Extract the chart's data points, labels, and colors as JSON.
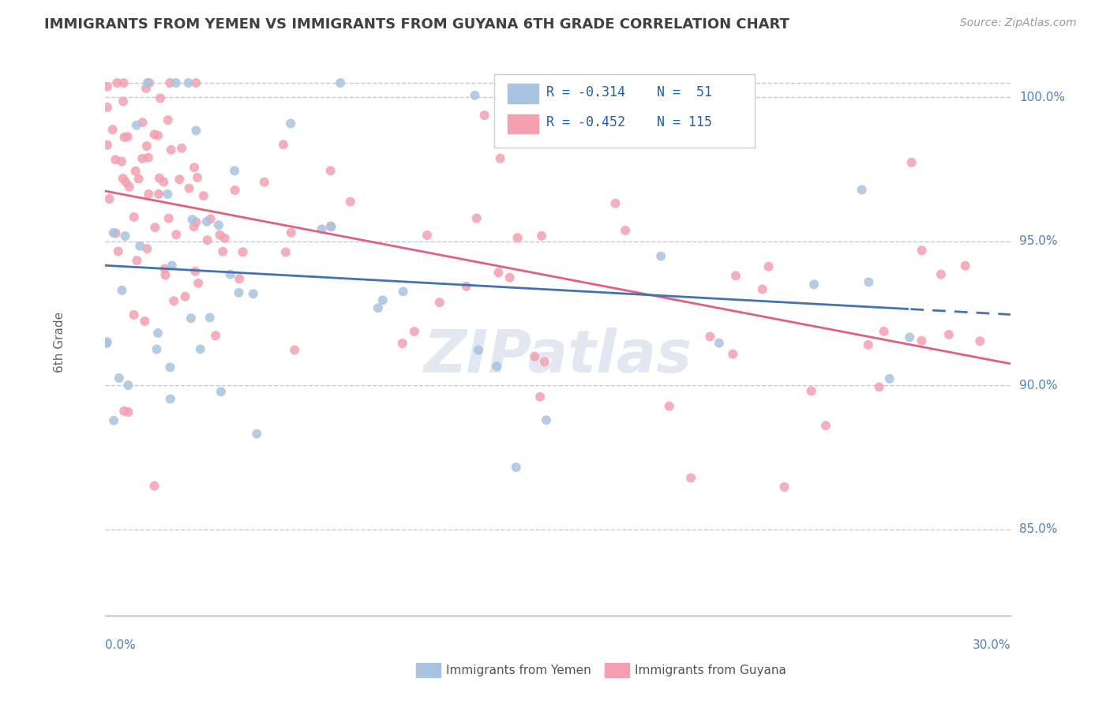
{
  "title": "IMMIGRANTS FROM YEMEN VS IMMIGRANTS FROM GUYANA 6TH GRADE CORRELATION CHART",
  "source_text": "Source: ZipAtlas.com",
  "ylabel": "6th Grade",
  "xlim": [
    0.0,
    30.0
  ],
  "ylim": [
    82.0,
    101.5
  ],
  "ytick_vals": [
    85.0,
    90.0,
    95.0,
    100.0
  ],
  "ytick_labels": [
    "85.0%",
    "90.0%",
    "95.0%",
    "100.0%"
  ],
  "color_yemen": "#a8c4e0",
  "color_guyana": "#f4a0b0",
  "color_trend_yemen": "#4272b0",
  "color_trend_guyana": "#e06080",
  "background_color": "#ffffff",
  "grid_color": "#c8c8d8",
  "title_color": "#404040",
  "axis_label_color": "#5080c0",
  "legend_r1": "R = -0.314",
  "legend_n1": "N =  51",
  "legend_r2": "R = -0.452",
  "legend_n2": "N = 115"
}
